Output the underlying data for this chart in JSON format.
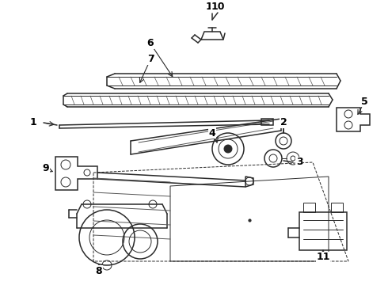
{
  "bg_color": "#ffffff",
  "line_color": "#2a2a2a",
  "label_color": "#000000",
  "figsize": [
    4.9,
    3.6
  ],
  "dpi": 100,
  "xlim": [
    0,
    490
  ],
  "ylim": [
    0,
    360
  ]
}
